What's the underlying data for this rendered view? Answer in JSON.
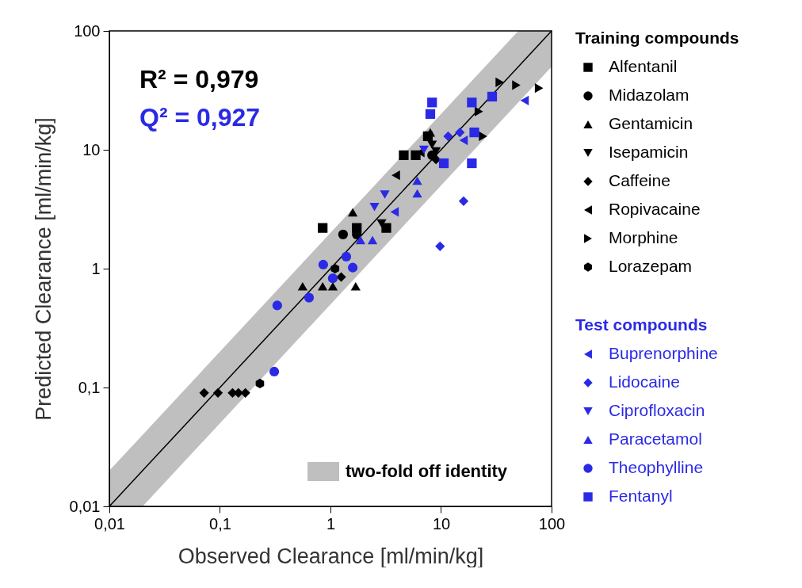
{
  "chart_data": {
    "type": "scatter",
    "xlabel": "Observed Clearance [ml/min/kg]",
    "ylabel": "Predicted Clearance [ml/min/kg]",
    "log": "xy",
    "xlim": [
      0.01,
      100
    ],
    "ylim": [
      0.01,
      100
    ],
    "xticks": [
      {
        "value": 0.01,
        "label": "0,01"
      },
      {
        "value": 0.1,
        "label": "0,1"
      },
      1,
      10,
      100
    ],
    "yticks": [
      {
        "value": 0.01,
        "label": "0,01"
      },
      {
        "value": 0.1,
        "label": "0,1"
      },
      1,
      10,
      100
    ],
    "grid": false,
    "legend": "right",
    "legend_title": [
      "Training compounds",
      "Test compounds"
    ],
    "annotations": [
      "R² = 0,979",
      "Q² = 0,927"
    ],
    "series": [
      {
        "type": "line",
        "name": "two-fold off identity",
        "color": "#000000",
        "x": [
          0.01,
          0.02,
          50,
          100
        ],
        "values": [
          0.01,
          0.02,
          50,
          100
        ],
        "lower": [
          0.01,
          0.01,
          25,
          50
        ],
        "upper": [
          0.02,
          0.04,
          100,
          100
        ]
      },
      {
        "name": "Alfentanil",
        "color": "#000000",
        "marker": "square",
        "x": [
          0.85,
          1.73,
          3.2,
          4.6,
          5.9,
          7.6
        ],
        "values": [
          2.2,
          2.2,
          2.2,
          9,
          9,
          13
        ]
      },
      {
        "name": "Midazolam",
        "color": "#000000",
        "marker": "circle",
        "x": [
          1.3,
          1.73,
          8.3
        ],
        "values": [
          1.94,
          1.94,
          9
        ]
      },
      {
        "name": "Gentamicin",
        "color": "#000000",
        "marker": "triangle",
        "x": [
          0.56,
          0.85,
          1.05,
          1.69,
          1.59,
          8
        ],
        "values": [
          0.71,
          0.71,
          0.71,
          0.71,
          2.98,
          14
        ]
      },
      {
        "name": "Isepamicin",
        "color": "#000000",
        "marker": "triangle-down",
        "x": [
          8.3,
          9,
          2.9
        ],
        "values": [
          11,
          9.7,
          2.4
        ]
      },
      {
        "name": "Caffeine",
        "color": "#000000",
        "marker": "diamond",
        "x": [
          0.072,
          0.096,
          0.13,
          0.147,
          0.17,
          1.25,
          9
        ],
        "values": [
          0.09,
          0.09,
          0.09,
          0.09,
          0.09,
          0.85,
          8.3
        ]
      },
      {
        "name": "Ropivacaine",
        "color": "#000000",
        "marker": "triangle-left",
        "x": [
          3.9,
          6.5
        ],
        "values": [
          6.1,
          9.5
        ]
      },
      {
        "name": "Morphine",
        "color": "#000000",
        "marker": "triangle-right",
        "x": [
          22,
          34,
          48,
          77,
          24
        ],
        "values": [
          21,
          37,
          35,
          33,
          13
        ]
      },
      {
        "name": "Lorazepam",
        "color": "#000000",
        "x": [
          0.23,
          1.1
        ],
        "values": [
          0.108,
          1
        ]
      },
      {
        "name": "Buprenorphine",
        "color": "#2a2ae6",
        "marker": "triangle-left",
        "x": [
          57,
          3.8,
          16
        ],
        "values": [
          26,
          3,
          12
        ]
      },
      {
        "name": "Lidocaine",
        "color": "#2a2ae6",
        "marker": "diamond",
        "x": [
          16,
          9.8,
          11.6,
          14.8
        ],
        "values": [
          3.7,
          1.54,
          13,
          14
        ]
      },
      {
        "name": "Ciprofloxacin",
        "color": "#2a2ae6",
        "marker": "triangle-down",
        "x": [
          2.5,
          3.1,
          7
        ],
        "values": [
          3.3,
          4.2,
          10
        ]
      },
      {
        "name": "Paracetamol",
        "color": "#2a2ae6",
        "marker": "triangle",
        "x": [
          1.87,
          2.4,
          6.1,
          6.1
        ],
        "values": [
          1.74,
          1.74,
          5.5,
          4.3
        ]
      },
      {
        "name": "Theophylline",
        "color": "#2a2ae6",
        "marker": "circle",
        "x": [
          0.33,
          0.64,
          0.31,
          1.39,
          1.59,
          0.86,
          1.05
        ],
        "values": [
          0.49,
          0.57,
          0.136,
          1.26,
          1.02,
          1.08,
          0.83
        ]
      },
      {
        "name": "Fentanyl",
        "color": "#2a2ae6",
        "marker": "square",
        "x": [
          10.6,
          19,
          8,
          8.3,
          19,
          29,
          20
        ],
        "values": [
          7.7,
          7.7,
          20,
          25,
          25,
          28,
          14
        ]
      }
    ]
  }
}
